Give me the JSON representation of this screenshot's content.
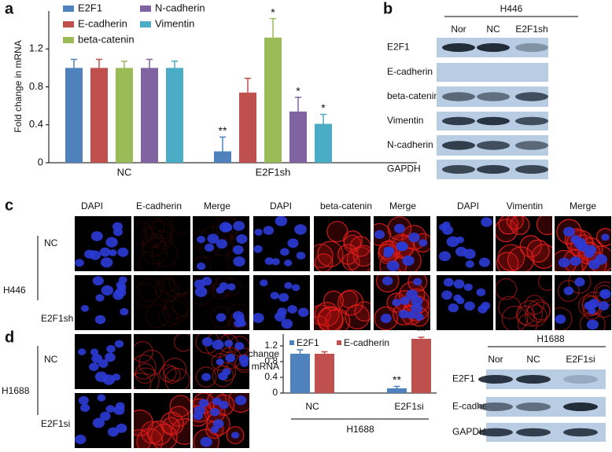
{
  "panel_labels": [
    "a",
    "b",
    "c",
    "d"
  ],
  "chart_data": [
    {
      "type": "bar",
      "ylabel": "Fold change in mRNA",
      "categories": [
        "NC",
        "E2F1sh"
      ],
      "ylim": [
        0,
        1.6
      ],
      "yticks": [
        0,
        0.4,
        0.8,
        1.2
      ],
      "series": [
        {
          "name": "E2F1",
          "color": "#4f81bd",
          "values": [
            1.0,
            0.12
          ],
          "errors": [
            0.09,
            0.15
          ],
          "annotations": [
            null,
            "**"
          ]
        },
        {
          "name": "E-cadherin",
          "color": "#c0504d",
          "values": [
            1.0,
            0.74
          ],
          "errors": [
            0.09,
            0.15
          ]
        },
        {
          "name": "beta-catenin",
          "color": "#9bbb59",
          "values": [
            1.0,
            1.32
          ],
          "errors": [
            0.07,
            0.2
          ],
          "annotations": [
            null,
            "*"
          ]
        },
        {
          "name": "N-cadherin",
          "color": "#8064a2",
          "values": [
            1.0,
            0.54
          ],
          "errors": [
            0.09,
            0.15
          ],
          "annotations": [
            null,
            "*"
          ]
        },
        {
          "name": "Vimentin",
          "color": "#4bacc6",
          "values": [
            1.0,
            0.41
          ],
          "errors": [
            0.07,
            0.1
          ],
          "annotations": [
            null,
            "*"
          ]
        }
      ]
    },
    {
      "type": "bar",
      "ylabel_lines": [
        "Fold change",
        "in mRNA"
      ],
      "xlabel": "H1688",
      "categories": [
        "NC",
        "E2F1si"
      ],
      "ylim": [
        0,
        1.5
      ],
      "yticks": [
        0,
        0.4,
        0.8,
        1.2
      ],
      "series": [
        {
          "name": "E2F1",
          "color": "#4f81bd",
          "values": [
            1.0,
            0.12
          ],
          "errors": [
            0.1,
            0.05
          ],
          "annotations": [
            null,
            "**"
          ]
        },
        {
          "name": "E-cadherin",
          "color": "#c0504d",
          "values": [
            1.0,
            1.38
          ],
          "errors": [
            0.05,
            0.04
          ],
          "annotations": [
            null,
            "**"
          ]
        }
      ]
    }
  ],
  "blot_b": {
    "group": "H446",
    "lanes": [
      "Nor",
      "NC",
      "E2F1sh"
    ],
    "rows": [
      "E2F1",
      "E-cadherin",
      "beta-catenin",
      "Vimentin",
      "N-cadherin",
      "GAPDH"
    ]
  },
  "imaging_c": {
    "columns": [
      "DAPI",
      "E-cadherin",
      "Merge",
      "DAPI",
      "beta-catenin",
      "Merge",
      "DAPI",
      "Vimentin",
      "Merge"
    ],
    "group": "H446",
    "rows": [
      "NC",
      "E2F1sh"
    ]
  },
  "imaging_d": {
    "group": "H1688",
    "rows": [
      "NC",
      "E2F1si"
    ]
  },
  "blot_d": {
    "group": "H1688",
    "lanes": [
      "Nor",
      "NC",
      "E2F1si"
    ],
    "rows": [
      "E2F1",
      "E-cadherin",
      "GAPDH"
    ]
  }
}
